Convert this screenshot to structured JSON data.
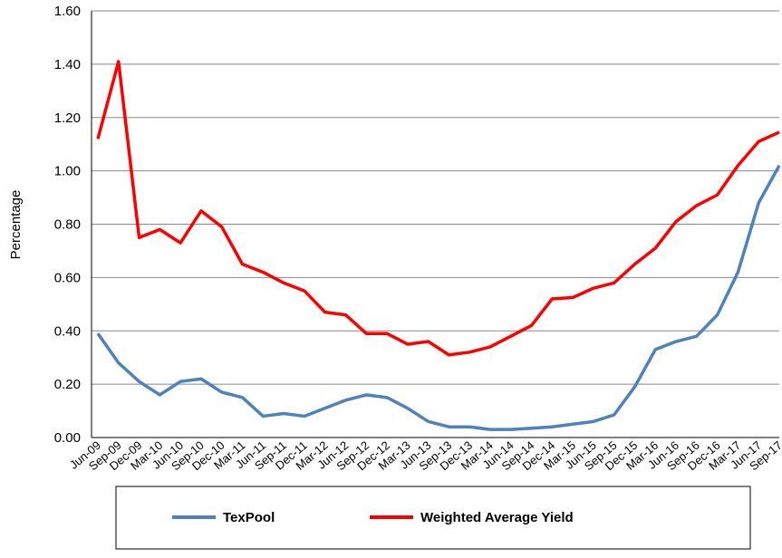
{
  "chart_data": {
    "type": "line",
    "y_label": "Percentage",
    "categories": [
      "Jun-09",
      "Sep-09",
      "Dec-09",
      "Mar-10",
      "Jun-10",
      "Sep-10",
      "Dec-10",
      "Mar-11",
      "Jun-11",
      "Sep-11",
      "Dec-11",
      "Mar-12",
      "Jun-12",
      "Sep-12",
      "Dec-12",
      "Mar-13",
      "Jun-13",
      "Sep-13",
      "Dec-13",
      "Mar-14",
      "Jun-14",
      "Sep-14",
      "Dec-14",
      "Mar-15",
      "Jun-15",
      "Sep-15",
      "Dec-15",
      "Mar-16",
      "Jun-16",
      "Sep-16",
      "Dec-16",
      "Mar-17",
      "Jun-17",
      "Sep-17"
    ],
    "series": [
      {
        "name": "TexPool",
        "color": "#4f81bd",
        "values": [
          0.39,
          0.28,
          0.21,
          0.16,
          0.21,
          0.22,
          0.17,
          0.15,
          0.08,
          0.09,
          0.08,
          0.11,
          0.14,
          0.16,
          0.15,
          0.11,
          0.06,
          0.04,
          0.04,
          0.03,
          0.03,
          0.035,
          0.04,
          0.05,
          0.06,
          0.085,
          0.19,
          0.33,
          0.36,
          0.38,
          0.46,
          0.62,
          0.88,
          1.02
        ]
      },
      {
        "name": "Weighted Average Yield",
        "color": "#ff0000",
        "values": [
          1.12,
          1.41,
          0.75,
          0.78,
          0.73,
          0.85,
          0.79,
          0.65,
          0.62,
          0.58,
          0.55,
          0.47,
          0.46,
          0.39,
          0.39,
          0.35,
          0.36,
          0.31,
          0.32,
          0.34,
          0.38,
          0.42,
          0.52,
          0.525,
          0.56,
          0.58,
          0.65,
          0.71,
          0.81,
          0.87,
          0.91,
          1.02,
          1.11,
          1.145
        ]
      }
    ],
    "ylim": [
      0,
      1.6
    ],
    "yticks": [
      {
        "value": 0,
        "label": "0.00"
      },
      {
        "value": 0.2,
        "label": "0.20"
      },
      {
        "value": 0.4,
        "label": "0.40"
      },
      {
        "value": 0.6,
        "label": "0.60"
      },
      {
        "value": 0.8,
        "label": "0.80"
      },
      {
        "value": 1,
        "label": "1.00"
      },
      {
        "value": 1.2,
        "label": "1.20"
      },
      {
        "value": 1.4,
        "label": "1.40"
      },
      {
        "value": 1.6,
        "label": "1.60"
      }
    ],
    "grid": true
  }
}
